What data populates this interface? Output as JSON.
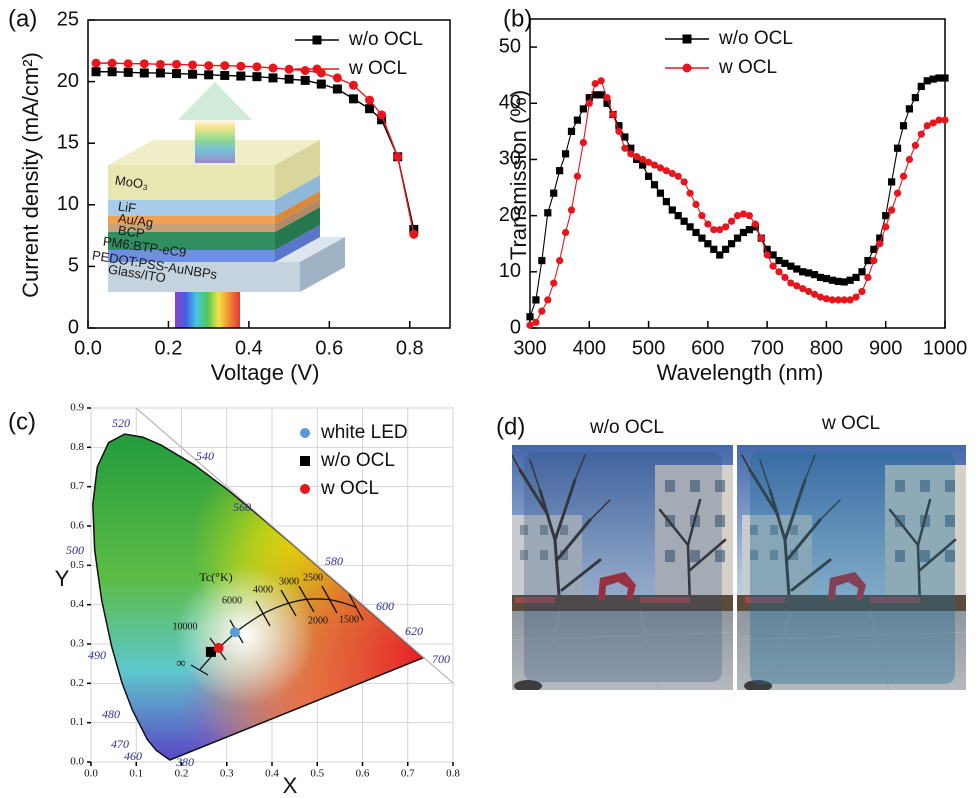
{
  "chart_data": [
    {
      "type": "line",
      "panel_label": "(a)",
      "xlabel": "Voltage (V)",
      "ylabel": "Current density (mA/cm²)",
      "x": [
        0.02,
        0.06,
        0.1,
        0.14,
        0.18,
        0.22,
        0.26,
        0.3,
        0.34,
        0.38,
        0.42,
        0.46,
        0.5,
        0.54,
        0.58,
        0.62,
        0.66,
        0.7,
        0.73,
        0.77,
        0.81
      ],
      "series": [
        {
          "name": "w/o OCL",
          "color": "#000000",
          "marker": "square",
          "values": [
            20.8,
            20.8,
            20.75,
            20.7,
            20.7,
            20.65,
            20.6,
            20.55,
            20.5,
            20.45,
            20.4,
            20.3,
            20.2,
            20.1,
            19.8,
            19.4,
            18.6,
            17.8,
            16.9,
            13.9,
            8
          ]
        },
        {
          "name": "w OCL",
          "color": "#e8161c",
          "marker": "circle",
          "values": [
            21.5,
            21.5,
            21.45,
            21.45,
            21.4,
            21.4,
            21.35,
            21.3,
            21.3,
            21.25,
            21.2,
            21.1,
            21,
            20.9,
            20.7,
            20.3,
            19.7,
            18.5,
            17.3,
            13.9,
            7.6
          ]
        }
      ],
      "xlim": [
        0,
        0.9
      ],
      "xticks": [
        {
          "value": 0,
          "label": "0.0"
        },
        {
          "value": 0.2,
          "label": "0.2"
        },
        {
          "value": 0.4,
          "label": "0.4"
        },
        {
          "value": 0.6,
          "label": "0.6"
        },
        {
          "value": 0.8,
          "label": "0.8"
        }
      ],
      "ylim": [
        0,
        25
      ],
      "yticks": [
        0,
        5,
        10,
        15,
        20,
        25
      ],
      "grid": false,
      "legend": "upper right",
      "inset_labels": [
        "MoO₃",
        "LiF",
        "Au/Ag",
        "BCP",
        "PM6:BTP-eC9",
        "PEDOT:PSS-AuNBPs",
        "Glass/ITO"
      ]
    },
    {
      "type": "line",
      "panel_label": "(b)",
      "xlabel": "Wavelength (nm)",
      "ylabel": "Transmission (%)",
      "x": [
        300,
        310,
        320,
        330,
        340,
        350,
        360,
        370,
        380,
        390,
        400,
        410,
        420,
        430,
        440,
        450,
        460,
        470,
        480,
        490,
        500,
        510,
        520,
        530,
        540,
        550,
        560,
        570,
        580,
        590,
        600,
        610,
        620,
        630,
        640,
        650,
        660,
        670,
        680,
        690,
        700,
        710,
        720,
        730,
        740,
        750,
        760,
        770,
        780,
        790,
        800,
        810,
        820,
        830,
        840,
        850,
        860,
        870,
        880,
        890,
        900,
        910,
        920,
        930,
        940,
        950,
        960,
        970,
        980,
        990,
        1000
      ],
      "series": [
        {
          "name": "w/o OCL",
          "color": "#000000",
          "marker": "square",
          "values": [
            2,
            5,
            12,
            20.5,
            24,
            28,
            31,
            35,
            37,
            39,
            41,
            41.5,
            41.5,
            40,
            38,
            36,
            34,
            32,
            30,
            29,
            27,
            25.5,
            24,
            22.5,
            21,
            20,
            19,
            18,
            17,
            16,
            15,
            14,
            13,
            14,
            15,
            16,
            17,
            17.5,
            18,
            16,
            14,
            13,
            12,
            11.5,
            11,
            10.5,
            10,
            9.8,
            9.5,
            9,
            8.8,
            8.5,
            8.3,
            8.2,
            8.5,
            9,
            10,
            12,
            14,
            16,
            20,
            26,
            32,
            36,
            39,
            41,
            43,
            44,
            44.3,
            44.5,
            44.5
          ]
        },
        {
          "name": "w OCL",
          "color": "#e8161c",
          "marker": "circle",
          "values": [
            0.5,
            1,
            3,
            5,
            8,
            12,
            17,
            21,
            27,
            33,
            40,
            43.5,
            44,
            41,
            38,
            35,
            32,
            31,
            30.5,
            30,
            29.5,
            29,
            28.5,
            28,
            27.5,
            27,
            26,
            24,
            22,
            20,
            18.5,
            17.5,
            17.5,
            18,
            19,
            20,
            20.3,
            20,
            18.5,
            16,
            13,
            11,
            10,
            9,
            8,
            7.5,
            7,
            6.5,
            6,
            5.5,
            5.2,
            5,
            5,
            5,
            5,
            5.5,
            6.5,
            9,
            12,
            15,
            18,
            21,
            24,
            27,
            30,
            32.5,
            34.5,
            36,
            36.5,
            37,
            37
          ]
        }
      ],
      "xlim": [
        300,
        1000
      ],
      "xticks": [
        300,
        400,
        500,
        600,
        700,
        800,
        900,
        1000
      ],
      "ylim": [
        0,
        55
      ],
      "yticks": [
        0,
        10,
        20,
        30,
        40,
        50
      ],
      "grid": false,
      "legend": "upper center"
    },
    {
      "type": "scatter",
      "panel_label": "(c)",
      "xlabel": "X",
      "ylabel": "Y",
      "series": [
        {
          "name": "white LED",
          "color": "#5b9bd5",
          "marker": "circle",
          "x": [
            0.318
          ],
          "y": [
            0.33
          ]
        },
        {
          "name": "w/o OCL",
          "color": "#000000",
          "marker": "square",
          "x": [
            0.265
          ],
          "y": [
            0.28
          ]
        },
        {
          "name": "w OCL",
          "color": "#e8161c",
          "marker": "circle",
          "x": [
            0.282
          ],
          "y": [
            0.29
          ]
        }
      ],
      "xlim": [
        0,
        0.8
      ],
      "xticks": [
        {
          "value": 0,
          "label": "0.0"
        },
        {
          "value": 0.1,
          "label": "0.1"
        },
        {
          "value": 0.2,
          "label": "0.2"
        },
        {
          "value": 0.3,
          "label": "0.3"
        },
        {
          "value": 0.4,
          "label": "0.4"
        },
        {
          "value": 0.5,
          "label": "0.5"
        },
        {
          "value": 0.6,
          "label": "0.6"
        },
        {
          "value": 0.7,
          "label": "0.7"
        },
        {
          "value": 0.8,
          "label": "0.8"
        }
      ],
      "ylim": [
        0,
        0.9
      ],
      "yticks": [
        {
          "value": 0,
          "label": "0.0"
        },
        {
          "value": 0.1,
          "label": "0.1"
        },
        {
          "value": 0.2,
          "label": "0.2"
        },
        {
          "value": 0.3,
          "label": "0.3"
        },
        {
          "value": 0.4,
          "label": "0.4"
        },
        {
          "value": 0.5,
          "label": "0.5"
        },
        {
          "value": 0.6,
          "label": "0.6"
        },
        {
          "value": 0.7,
          "label": "0.7"
        },
        {
          "value": 0.8,
          "label": "0.8"
        },
        {
          "value": 0.9,
          "label": "0.9"
        }
      ],
      "grid": true,
      "legend": "upper right",
      "wavelength_labels": [
        520,
        540,
        560,
        580,
        600,
        620,
        700,
        500,
        490,
        480,
        470,
        460,
        380
      ],
      "cct_title": "Tc(°K)",
      "cct_labels": [
        10000,
        6000,
        4000,
        3000,
        2500,
        2000,
        1500,
        "∞"
      ]
    }
  ],
  "photos": {
    "panel_label": "(d)",
    "titles": [
      "w/o OCL",
      "w OCL"
    ]
  }
}
